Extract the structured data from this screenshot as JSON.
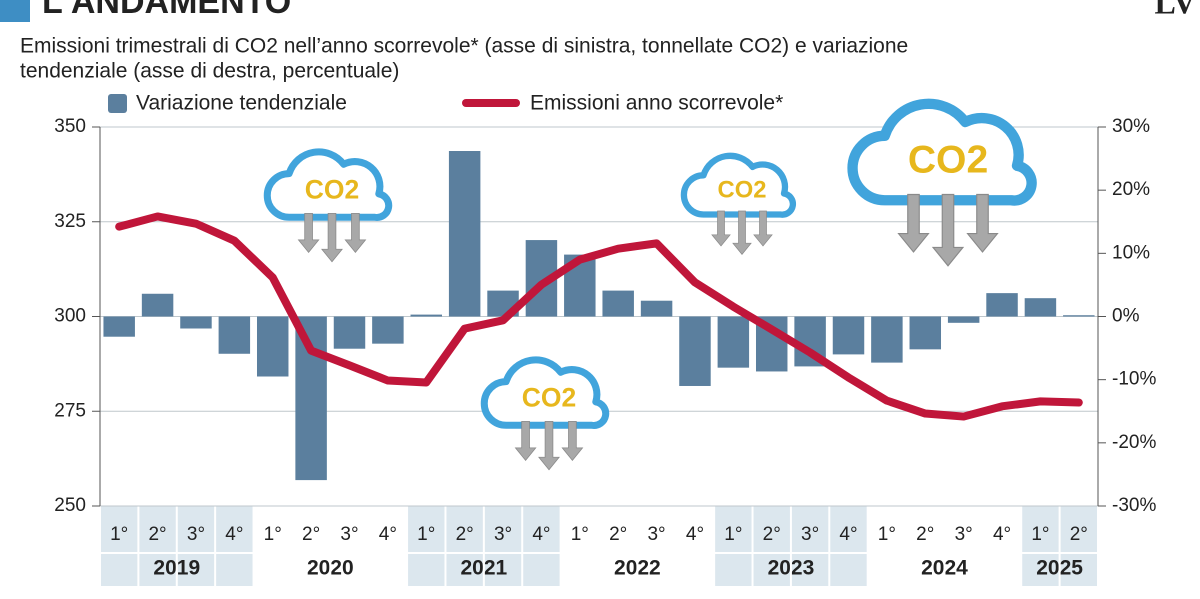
{
  "chart_data": {
    "type": "bar-line",
    "title": "L'ANDAMENTO",
    "logo": "LV",
    "subtitle": [
      "Emissioni trimestrali di CO2 nell’anno scorrevole* (asse di sinistra, tonnellate CO2) e variazione",
      "tendenziale (asse di destra, percentuale)"
    ],
    "cloud_label": "CO2",
    "categories": [
      "1°",
      "2°",
      "3°",
      "4°",
      "1°",
      "2°",
      "3°",
      "4°",
      "1°",
      "2°",
      "3°",
      "4°",
      "1°",
      "2°",
      "3°",
      "4°",
      "1°",
      "2°",
      "3°",
      "4°",
      "1°",
      "2°",
      "3°",
      "4°",
      "1°",
      "2°"
    ],
    "years": [
      "2019",
      "2020",
      "2021",
      "2022",
      "2023",
      "2024",
      "2025"
    ],
    "series": [
      {
        "name": "Variazione tendenziale",
        "color": "#5b7f9e",
        "axis": "y2",
        "values": [
          -3.2,
          3.6,
          -1.9,
          -5.9,
          -9.5,
          -25.9,
          -5.1,
          -4.3,
          0.3,
          26.2,
          4.1,
          12.1,
          9.8,
          4.1,
          2.5,
          -11,
          -8.1,
          -8.7,
          -7.9,
          -6,
          -7.3,
          -5.2,
          -1,
          3.7,
          2.9,
          0.2
        ]
      },
      {
        "name": "Emissioni anno scorrevole*",
        "color": "#c0163a",
        "values": [
          323.7,
          326.4,
          324.5,
          320,
          310.3,
          291,
          287.1,
          283.1,
          282.6,
          296.8,
          299,
          308.4,
          315,
          317.9,
          319.3,
          309,
          302.6,
          296.6,
          290.5,
          283.9,
          277.8,
          274.4,
          273.6,
          276.3,
          277.6,
          277.3
        ]
      }
    ],
    "ylim": [
      250,
      350
    ],
    "yticks": [
      250,
      275,
      300,
      325,
      350
    ],
    "y2lim": [
      -30,
      30
    ],
    "y2ticks": [
      {
        "value": -30,
        "label": "-30%"
      },
      {
        "value": -20,
        "label": "-20%"
      },
      {
        "value": -10,
        "label": "-10%"
      },
      {
        "value": 0,
        "label": "0%"
      },
      {
        "value": 10,
        "label": "10%"
      },
      {
        "value": 20,
        "label": "20%"
      },
      {
        "value": 30,
        "label": "30%"
      }
    ],
    "grid": true
  }
}
